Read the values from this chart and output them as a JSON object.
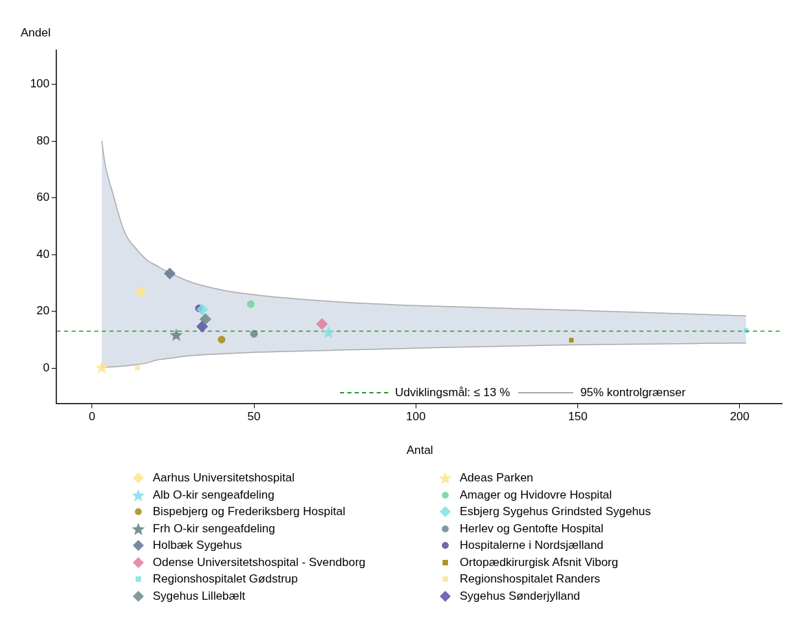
{
  "chart_data": {
    "type": "scatter",
    "xlabel": "Antal",
    "ylabel": "Andel",
    "xlim": [
      -11,
      213
    ],
    "ylim": [
      -12.5,
      112
    ],
    "xticks": [
      0,
      50,
      100,
      150,
      200
    ],
    "yticks": [
      0,
      20,
      40,
      60,
      80,
      100
    ],
    "grid": false,
    "legend": "bottom",
    "ref_lines": [
      {
        "axis": "y",
        "value": 13,
        "label": "Udviklingsmål: ≤ 13 %",
        "color": "#2a9a2a",
        "line_style": "dashed"
      }
    ],
    "series": [
      {
        "type": "line",
        "name": "95% kontrolgrænser",
        "color": "#aaaaaa",
        "x": [
          3,
          4,
          6.3,
          10,
          14,
          17,
          20,
          24,
          30,
          40,
          50,
          73,
          100,
          150,
          202
        ],
        "values": [
          80,
          72,
          62,
          48,
          41.5,
          38,
          36,
          33.5,
          30.5,
          27.5,
          25.8,
          23.5,
          22,
          20.3,
          18.4
        ],
        "upper": [
          80,
          72,
          62,
          48,
          41.5,
          38,
          36,
          33.5,
          30.5,
          27.5,
          25.8,
          23.5,
          22,
          20.3,
          18.4
        ],
        "lower": [
          0,
          0.2,
          0.4,
          0.7,
          1.2,
          1.8,
          2.8,
          3.4,
          4.3,
          5,
          5.5,
          6.2,
          7,
          8.2,
          8.8
        ]
      },
      {
        "type": "line",
        "color": "#aaaaaa",
        "x": [
          3,
          4,
          6.3,
          10,
          14,
          17,
          20,
          24,
          30,
          40,
          50,
          73,
          100,
          150,
          202
        ],
        "values": [
          0,
          0.2,
          0.4,
          0.7,
          1.2,
          1.8,
          2.8,
          3.4,
          4.3,
          5,
          5.5,
          6.2,
          7,
          8.2,
          8.8
        ]
      },
      {
        "name": "Aarhus Universitetshospital",
        "color": "#fde48c",
        "marker": "diamond",
        "x": [
          15
        ],
        "values": [
          26.8
        ]
      },
      {
        "name": "Adeas Parken",
        "color": "#fde48c",
        "marker": "star",
        "x": [
          3
        ],
        "values": [
          0
        ]
      },
      {
        "name": "Alb O-kir sengeafdeling",
        "color": "#7ee0e0",
        "marker": "star",
        "x": [
          73
        ],
        "values": [
          12.4
        ]
      },
      {
        "name": "Amager og Hvidovre Hospital",
        "color": "#6fd3a0",
        "marker": "circle",
        "x": [
          49
        ],
        "values": [
          22.5
        ]
      },
      {
        "name": "Bispebjerg og Frederiksberg Hospital",
        "color": "#a88a10",
        "marker": "circle",
        "x": [
          40
        ],
        "values": [
          10
        ]
      },
      {
        "name": "Esbjerg Sygehus Grindsted Sygehus",
        "color": "#7ee0e0",
        "marker": "diamond",
        "x": [
          34
        ],
        "values": [
          20.6
        ]
      },
      {
        "name": "Frh O-kir sengeafdeling",
        "color": "#62807e",
        "marker": "star",
        "x": [
          26
        ],
        "values": [
          11.5
        ]
      },
      {
        "name": "Herlev og Gentofte Hospital",
        "color": "#6a8888",
        "marker": "circle",
        "x": [
          50
        ],
        "values": [
          12
        ]
      },
      {
        "name": "Holbæk Sygehus",
        "color": "#5f7690",
        "marker": "diamond",
        "x": [
          24
        ],
        "values": [
          33.3
        ]
      },
      {
        "name": "Hospitalerne i Nordsjælland",
        "color": "#5a4ea0",
        "marker": "circle",
        "x": [
          33
        ],
        "values": [
          21
        ]
      },
      {
        "name": "Odense Universitetshospital - Svendborg",
        "color": "#e07aa0",
        "marker": "diamond",
        "x": [
          71
        ],
        "values": [
          15.5
        ]
      },
      {
        "name": "Ortopædkirurgisk Afsnit Viborg",
        "color": "#a08400",
        "marker": "square",
        "x": [
          148
        ],
        "values": [
          9.8
        ]
      },
      {
        "name": "Regionshospitalet Gødstrup",
        "color": "#7ee0e0",
        "marker": "square",
        "x": [
          202
        ],
        "values": [
          13.2
        ]
      },
      {
        "name": "Regionshospitalet Randers",
        "color": "#fde48c",
        "marker": "square",
        "x": [
          14
        ],
        "values": [
          0
        ]
      },
      {
        "name": "Sygehus Lillebælt",
        "color": "#6a8888",
        "marker": "diamond",
        "x": [
          35
        ],
        "values": [
          17.2
        ]
      },
      {
        "name": "Sygehus Sønderjylland",
        "color": "#5b4fa8",
        "marker": "diamond",
        "x": [
          34
        ],
        "values": [
          14.6
        ]
      }
    ]
  }
}
